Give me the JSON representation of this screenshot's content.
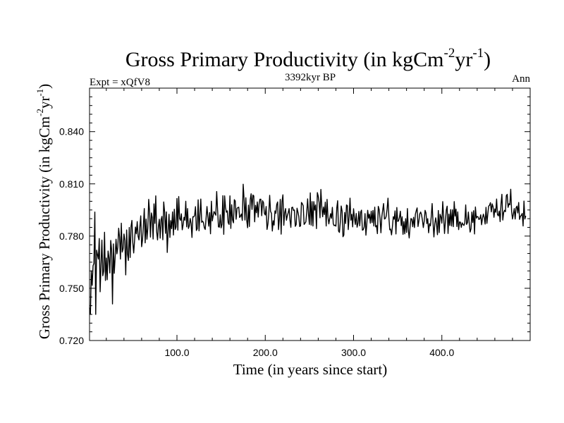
{
  "chart_data": {
    "type": "line",
    "title": "Gross Primary Productivity (in kgCm",
    "title_sup_1": "-2",
    "title_mid": "yr",
    "title_sup_2": "-1",
    "title_end": ")",
    "subtitle_left": "Expt = xQfV8",
    "subtitle_center": "3392kyr BP",
    "subtitle_right": "Ann",
    "xlabel": "Time (in years since start)",
    "ylabel": "Gross Primary Productivity (in kgCm",
    "ylabel_sup_1": "-2",
    "ylabel_mid": "yr",
    "ylabel_sup_2": "-1",
    "ylabel_end": ")",
    "xlim": [
      1,
      500
    ],
    "ylim": [
      0.72,
      0.865
    ],
    "x_ticks": [
      100,
      200,
      300,
      400
    ],
    "x_tick_labels": [
      "100.0",
      "200.0",
      "300.0",
      "400.0"
    ],
    "y_ticks": [
      0.72,
      0.75,
      0.78,
      0.81,
      0.84
    ],
    "y_tick_labels": [
      "0.720",
      "0.750",
      "0.780",
      "0.810",
      "0.840"
    ],
    "line_color": "#000000",
    "series": [
      {
        "name": "Gross Primary Productivity",
        "x_start": 1,
        "x_step": 1,
        "values": [
          0.7388,
          0.7351,
          0.76,
          0.7517,
          0.763,
          0.7643,
          0.7938,
          0.735,
          0.7719,
          0.7693,
          0.7668,
          0.7786,
          0.748,
          0.7636,
          0.7777,
          0.7572,
          0.7599,
          0.7822,
          0.7545,
          0.7674,
          0.7549,
          0.7714,
          0.7677,
          0.7588,
          0.7775,
          0.7721,
          0.741,
          0.7755,
          0.7586,
          0.768,
          0.7782,
          0.7698,
          0.7735,
          0.7845,
          0.7794,
          0.7668,
          0.7874,
          0.7708,
          0.7727,
          0.7812,
          0.7774,
          0.7577,
          0.7835,
          0.7696,
          0.766,
          0.7849,
          0.7677,
          0.7854,
          0.789,
          0.7763,
          0.7703,
          0.7775,
          0.7852,
          0.7813,
          0.7883,
          0.7799,
          0.7778,
          0.7854,
          0.7916,
          0.7739,
          0.7777,
          0.786,
          0.7958,
          0.7761,
          0.7898,
          0.7782,
          0.7845,
          0.8011,
          0.7939,
          0.7794,
          0.7933,
          0.7907,
          0.7783,
          0.7985,
          0.7873,
          0.8031,
          0.7826,
          0.7778,
          0.7855,
          0.7897,
          0.7788,
          0.7893,
          0.7913,
          0.7779,
          0.7996,
          0.7941,
          0.7816,
          0.7939,
          0.7706,
          0.7826,
          0.7925,
          0.7792,
          0.7889,
          0.7843,
          0.7939,
          0.7806,
          0.7954,
          0.7838,
          0.7852,
          0.8016,
          0.7834,
          0.8027,
          0.7901,
          0.789,
          0.7928,
          0.7836,
          0.7866,
          0.7908,
          0.7891,
          0.8,
          0.7853,
          0.7958,
          0.7844,
          0.7859,
          0.7901,
          0.7872,
          0.7792,
          0.7911,
          0.791,
          0.7919,
          0.7969,
          0.7832,
          0.7842,
          0.8008,
          0.783,
          0.792,
          0.8013,
          0.7879,
          0.7886,
          0.7878,
          0.7848,
          0.7838,
          0.7904,
          0.797,
          0.7911,
          0.7857,
          0.7935,
          0.7813,
          0.8,
          0.7887,
          0.7916,
          0.7941,
          0.7931,
          0.792,
          0.8056,
          0.7953,
          0.7853,
          0.7851,
          0.7922,
          0.7847,
          0.7868,
          0.8032,
          0.781,
          0.8031,
          0.7964,
          0.7937,
          0.7945,
          0.7877,
          0.7867,
          0.8031,
          0.7844,
          0.798,
          0.7893,
          0.7876,
          0.8009,
          0.8002,
          0.7897,
          0.7959,
          0.7964,
          0.7966,
          0.7907,
          0.7915,
          0.7927,
          0.789,
          0.8098,
          0.8012,
          0.7892,
          0.802,
          0.7891,
          0.7848,
          0.7978,
          0.7855,
          0.8009,
          0.8043,
          0.7953,
          0.8036,
          0.8031,
          0.7882,
          0.7977,
          0.7934,
          0.7996,
          0.7909,
          0.7983,
          0.8012,
          0.8012,
          0.7917,
          0.8003,
          0.7992,
          0.7931,
          0.7921,
          0.797,
          0.7838,
          0.7868,
          0.7928,
          0.8034,
          0.7942,
          0.7931,
          0.7829,
          0.7888,
          0.7863,
          0.7945,
          0.7931,
          0.7982,
          0.7996,
          0.7837,
          0.7902,
          0.8011,
          0.7811,
          0.7999,
          0.8037,
          0.7862,
          0.7934,
          0.7958,
          0.7891,
          0.7917,
          0.7934,
          0.7958,
          0.7892,
          0.785,
          0.7964,
          0.7966,
          0.7947,
          0.795,
          0.7856,
          0.7866,
          0.796,
          0.7938,
          0.7913,
          0.7855,
          0.7859,
          0.7993,
          0.7986,
          0.7974,
          0.7867,
          0.7874,
          0.7882,
          0.7939,
          0.8014,
          0.7926,
          0.7867,
          0.8048,
          0.7863,
          0.7998,
          0.7858,
          0.7998,
          0.7949,
          0.7979,
          0.7843,
          0.805,
          0.8029,
          0.7992,
          0.7905,
          0.8068,
          0.797,
          0.7911,
          0.7967,
          0.7924,
          0.7995,
          0.7858,
          0.8011,
          0.7911,
          0.787,
          0.7901,
          0.7929,
          0.7902,
          0.7965,
          0.7871,
          0.786,
          0.7863,
          0.7857,
          0.7962,
          0.8003,
          0.7829,
          0.7821,
          0.7881,
          0.7973,
          0.7944,
          0.7796,
          0.7806,
          0.7936,
          0.7872,
          0.7979,
          0.7975,
          0.7837,
          0.7913,
          0.8018,
          0.7891,
          0.7925,
          0.7853,
          0.7957,
          0.7904,
          0.7867,
          0.793,
          0.7851,
          0.7874,
          0.7942,
          0.7859,
          0.7937,
          0.7949,
          0.7834,
          0.7837,
          0.7852,
          0.7929,
          0.7805,
          0.787,
          0.7948,
          0.7902,
          0.7926,
          0.7874,
          0.7943,
          0.7877,
          0.7947,
          0.7858,
          0.7966,
          0.7853,
          0.7861,
          0.7814,
          0.7971,
          0.7953,
          0.79,
          0.7819,
          0.791,
          0.7949,
          0.7987,
          0.7898,
          0.7901,
          0.7915,
          0.7956,
          0.8018,
          0.7908,
          0.7836,
          0.784,
          0.7807,
          0.7853,
          0.7911,
          0.7897,
          0.7945,
          0.7812,
          0.7964,
          0.7884,
          0.7888,
          0.7908,
          0.7943,
          0.786,
          0.7911,
          0.781,
          0.7883,
          0.7813,
          0.79,
          0.7821,
          0.7958,
          0.7834,
          0.7789,
          0.7853,
          0.7901,
          0.7898,
          0.7854,
          0.7908,
          0.7849,
          0.7925,
          0.7946,
          0.7962,
          0.7855,
          0.7887,
          0.7928,
          0.7938,
          0.7922,
          0.7891,
          0.7849,
          0.7885,
          0.7948,
          0.7933,
          0.7872,
          0.79,
          0.7819,
          0.7871,
          0.7859,
          0.7913,
          0.7987,
          0.7877,
          0.7795,
          0.7871,
          0.7905,
          0.7868,
          0.7808,
          0.7947,
          0.782,
          0.7925,
          0.791,
          0.7874,
          0.7998,
          0.7911,
          0.7815,
          0.7883,
          0.7949,
          0.7972,
          0.7815,
          0.7926,
          0.7861,
          0.7952,
          0.7858,
          0.7951,
          0.7854,
          0.7998,
          0.7915,
          0.7955,
          0.7855,
          0.7939,
          0.7837,
          0.7881,
          0.788,
          0.785,
          0.7876,
          0.7867,
          0.7861,
          0.7876,
          0.7979,
          0.7867,
          0.7877,
          0.7938,
          0.7874,
          0.7823,
          0.7842,
          0.7938,
          0.7878,
          0.7946,
          0.7812,
          0.7967,
          0.7903,
          0.7913,
          0.791,
          0.7895,
          0.79,
          0.7922,
          0.7865,
          0.7903,
          0.7926,
          0.7907,
          0.7869,
          0.7965,
          0.7873,
          0.7925,
          0.7972,
          0.7977,
          0.7992,
          0.7939,
          0.7985,
          0.7968,
          0.7908,
          0.7956,
          0.7937,
          0.8013,
          0.7923,
          0.7916,
          0.7944,
          0.7883,
          0.7985,
          0.804,
          0.7892,
          0.7935,
          0.7948,
          0.794,
          0.8032,
          0.804,
          0.7965,
          0.7986,
          0.798,
          0.8069,
          0.7942,
          0.7898,
          0.7926,
          0.7958,
          0.7898,
          0.7962,
          0.7972,
          0.7933,
          0.7993,
          0.7896,
          0.7913,
          0.7919,
          0.793,
          0.7858,
          0.8001,
          0.7898,
          0.7916
        ]
      }
    ]
  }
}
